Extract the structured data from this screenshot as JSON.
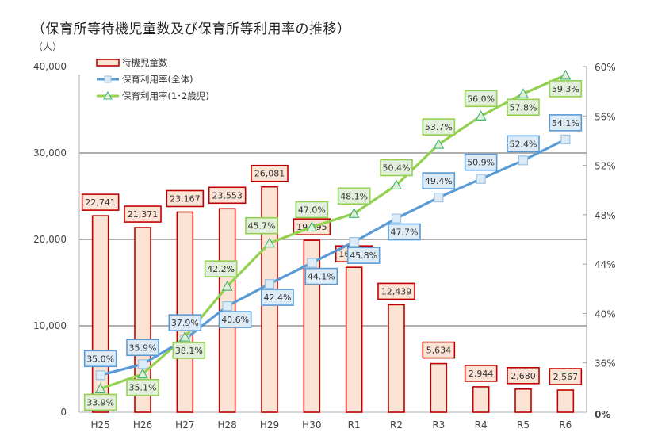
{
  "chart_data": {
    "type": "bar+line",
    "title": "（保育所等待機児童数及び保育所等利用率の推移）",
    "left_axis_unit": "（人）",
    "categories": [
      "H25",
      "H26",
      "H27",
      "H28",
      "H29",
      "H30",
      "R1",
      "R2",
      "R3",
      "R4",
      "R5",
      "R6"
    ],
    "series": [
      {
        "name": "待機児童数",
        "type": "bar",
        "axis": "left",
        "color": "#c00000",
        "fill": "#fbe4d5",
        "values": [
          22741,
          21371,
          23167,
          23553,
          26081,
          19895,
          16772,
          12439,
          5634,
          2944,
          2680,
          2567
        ],
        "labels": [
          "22,741",
          "21,371",
          "23,167",
          "23,553",
          "26,081",
          "19,895",
          "16,772",
          "12,439",
          "5,634",
          "2,944",
          "2,680",
          "2,567"
        ]
      },
      {
        "name": "保育利用率(全体)",
        "type": "line",
        "axis": "right",
        "marker": "square",
        "color": "#5b9bd5",
        "label_fill": "#ddebf7",
        "values": [
          35.0,
          35.9,
          37.9,
          40.6,
          42.4,
          44.1,
          45.8,
          47.7,
          49.4,
          50.9,
          52.4,
          54.1
        ],
        "labels": [
          "35.0%",
          "35.9%",
          "37.9%",
          "40.6%",
          "42.4%",
          "44.1%",
          "45.8%",
          "47.7%",
          "49.4%",
          "50.9%",
          "52.4%",
          "54.1%"
        ]
      },
      {
        "name": "保育利用率(1･2歳児)",
        "type": "line",
        "axis": "right",
        "marker": "triangle",
        "color": "#92d050",
        "label_fill": "#e2efda",
        "values": [
          33.9,
          35.1,
          38.1,
          42.2,
          45.7,
          47.0,
          48.1,
          50.4,
          53.7,
          56.0,
          57.8,
          59.3
        ],
        "labels": [
          "33.9%",
          "35.1%",
          "38.1%",
          "42.2%",
          "45.7%",
          "47.0%",
          "48.1%",
          "50.4%",
          "53.7%",
          "56.0%",
          "57.8%",
          "59.3%"
        ]
      }
    ],
    "left_axis": {
      "ylim": [
        0,
        40000
      ],
      "ticks": [
        0,
        10000,
        20000,
        30000,
        40000
      ],
      "tick_labels": [
        "0",
        "10,000",
        "20,000",
        "30,000",
        "40,000"
      ]
    },
    "right_axis": {
      "ylim_display": [
        32,
        60
      ],
      "ticks": [
        36,
        40,
        44,
        48,
        52,
        56,
        60
      ],
      "tick_labels": [
        "36%",
        "40%",
        "44%",
        "48%",
        "52%",
        "56%",
        "60%"
      ],
      "bottom_label": "0%"
    },
    "legend": {
      "placement": "top-left",
      "entries": [
        "待機児童数",
        "保育利用率(全体)",
        "保育利用率(1･2歳児)"
      ]
    },
    "grid": true
  }
}
